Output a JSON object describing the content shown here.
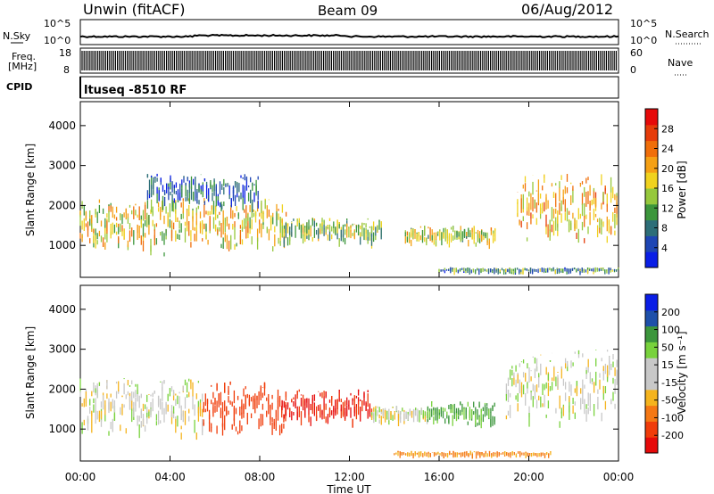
{
  "header": {
    "title": "Unwin (fitACF)",
    "beam": "Beam 09",
    "date": "06/Aug/2012"
  },
  "sky_panel": {
    "left_label": "N.Sky",
    "right_label": "N.Search",
    "left_ticks": [
      "10^5",
      "10^0"
    ],
    "right_ticks": [
      "10^5",
      "10^0"
    ]
  },
  "freq_panel": {
    "left_label_top": "Freq.",
    "left_label_bottom": "[MHz]",
    "right_label": "Nave",
    "left_ticks": [
      "18",
      "8"
    ],
    "right_ticks": [
      "60",
      "0"
    ]
  },
  "cpid_panel": {
    "label": "CPID",
    "text": "ltuseq -8510 RF"
  },
  "colors": {
    "power": [
      "#0a1ee6",
      "#1e46b4",
      "#2d6e78",
      "#3c963c",
      "#96c83c",
      "#f0d21e",
      "#f5a014",
      "#f06e0a",
      "#e63c0a",
      "#e60a0a"
    ],
    "velocity": [
      "#e60a0a",
      "#f03c0a",
      "#f57814",
      "#f5b41e",
      "#c8c8c8",
      "#c8c8c8",
      "#78d23c",
      "#3c963c",
      "#1e50aa",
      "#0a1ee6"
    ],
    "sky_line": "#000000",
    "freq_fill": "#000000"
  },
  "chart_data": [
    {
      "type": "heatmap",
      "name": "power",
      "ylabel": "Slant Range [km]",
      "ylim": [
        200,
        4600
      ],
      "yticks": [
        "1000",
        "2000",
        "3000",
        "4000"
      ],
      "xlim": [
        0,
        24
      ],
      "colorbar": {
        "label": "Power [dB]",
        "ticks": [
          "4",
          "8",
          "12",
          "16",
          "20",
          "24",
          "28"
        ],
        "range": [
          0,
          32
        ]
      },
      "echo_regions": [
        {
          "t0": 0.0,
          "t1": 9.2,
          "r0": 700,
          "r1": 2200,
          "level": 18
        },
        {
          "t0": 3.0,
          "t1": 8.0,
          "r0": 1800,
          "r1": 2800,
          "level": 6
        },
        {
          "t0": 9.0,
          "t1": 13.5,
          "r0": 900,
          "r1": 1700,
          "level": 14
        },
        {
          "t0": 14.5,
          "t1": 18.5,
          "r0": 900,
          "r1": 1500,
          "level": 16
        },
        {
          "t0": 19.5,
          "t1": 24.0,
          "r0": 1000,
          "r1": 2800,
          "level": 20
        },
        {
          "t0": 16.0,
          "t1": 24.0,
          "r0": 250,
          "r1": 450,
          "level": 10
        }
      ]
    },
    {
      "type": "heatmap",
      "name": "velocity",
      "ylabel": "Slant Range [km]",
      "xlabel": "Time UT",
      "ylim": [
        200,
        4600
      ],
      "yticks": [
        "1000",
        "2000",
        "3000",
        "4000"
      ],
      "xlim": [
        0,
        24
      ],
      "xticks": [
        "00:00",
        "04:00",
        "08:00",
        "12:00",
        "16:00",
        "20:00",
        "00:00"
      ],
      "colorbar": {
        "label": "Velocity [m s⁻¹]",
        "ticks": [
          "-200",
          "-100",
          "-50",
          "-15",
          "15",
          "50",
          "100",
          "200"
        ],
        "range": [
          -250,
          250
        ]
      },
      "echo_regions": [
        {
          "t0": 0.0,
          "t1": 5.5,
          "r0": 700,
          "r1": 2300,
          "level": 0
        },
        {
          "t0": 5.5,
          "t1": 9.2,
          "r0": 700,
          "r1": 2200,
          "level": -160
        },
        {
          "t0": 9.0,
          "t1": 13.0,
          "r0": 1000,
          "r1": 2000,
          "level": -200
        },
        {
          "t0": 13.0,
          "t1": 15.5,
          "r0": 1000,
          "r1": 1600,
          "level": 0
        },
        {
          "t0": 15.5,
          "t1": 18.5,
          "r0": 1000,
          "r1": 1700,
          "level": 60
        },
        {
          "t0": 19.0,
          "t1": 24.0,
          "r0": 1000,
          "r1": 3000,
          "level": 5
        },
        {
          "t0": 14.0,
          "t1": 21.0,
          "r0": 250,
          "r1": 450,
          "level": -60
        }
      ]
    }
  ]
}
